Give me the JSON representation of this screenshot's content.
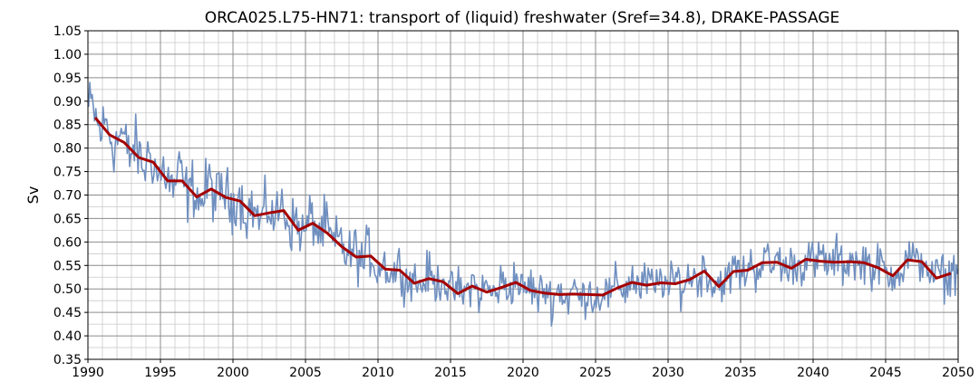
{
  "chart_data": {
    "type": "line",
    "title": "ORCA025.L75-HN71: transport of (liquid) freshwater (Sref=34.8), DRAKE-PASSAGE",
    "xlabel": "",
    "ylabel": "Sv",
    "xlim": [
      1990,
      2050
    ],
    "ylim": [
      0.35,
      1.05
    ],
    "xticks": [
      "1990",
      "1995",
      "2000",
      "2005",
      "2010",
      "2015",
      "2020",
      "2025",
      "2030",
      "2035",
      "2040",
      "2045",
      "2050"
    ],
    "yticks": [
      "0.35",
      "0.40",
      "0.45",
      "0.50",
      "0.55",
      "0.60",
      "0.65",
      "0.70",
      "0.75",
      "0.80",
      "0.85",
      "0.90",
      "0.95",
      "1.00",
      "1.05"
    ],
    "grid": true,
    "monthly_color": "#6f8fbf",
    "annual_color": "#a50000",
    "annual": {
      "x": [
        1990.5,
        1991.5,
        1992.5,
        1993.5,
        1994.5,
        1995.5,
        1996.5,
        1997.5,
        1998.5,
        1999.5,
        2000.5,
        2001.5,
        2002.5,
        2003.5,
        2004.5,
        2005.5,
        2006.5,
        2007.5,
        2008.5,
        2009.5,
        2010.5,
        2011.5,
        2012.5,
        2013.5,
        2014.5,
        2015.5,
        2016.5,
        2017.5,
        2018.5,
        2019.5,
        2020.5,
        2021.5,
        2022.5,
        2023.5,
        2024.5,
        2025.5,
        2026.5,
        2027.5,
        2028.5,
        2029.5,
        2030.5,
        2031.5,
        2032.5,
        2033.5,
        2034.5,
        2035.5,
        2036.5,
        2037.5,
        2038.5,
        2039.5,
        2040.5,
        2041.5,
        2042.5,
        2043.5,
        2044.5,
        2045.5,
        2046.5,
        2047.5,
        2048.5,
        2049.5
      ],
      "y": [
        0.865,
        0.828,
        0.812,
        0.78,
        0.77,
        0.73,
        0.73,
        0.696,
        0.713,
        0.695,
        0.687,
        0.656,
        0.662,
        0.667,
        0.625,
        0.64,
        0.619,
        0.59,
        0.568,
        0.57,
        0.542,
        0.54,
        0.512,
        0.522,
        0.515,
        0.49,
        0.506,
        0.493,
        0.503,
        0.514,
        0.497,
        0.491,
        0.488,
        0.489,
        0.488,
        0.487,
        0.502,
        0.514,
        0.508,
        0.513,
        0.511,
        0.52,
        0.538,
        0.505,
        0.537,
        0.54,
        0.556,
        0.557,
        0.544,
        0.563,
        0.559,
        0.557,
        0.558,
        0.556,
        0.545,
        0.528,
        0.562,
        0.558,
        0.523,
        0.533
      ]
    }
  }
}
